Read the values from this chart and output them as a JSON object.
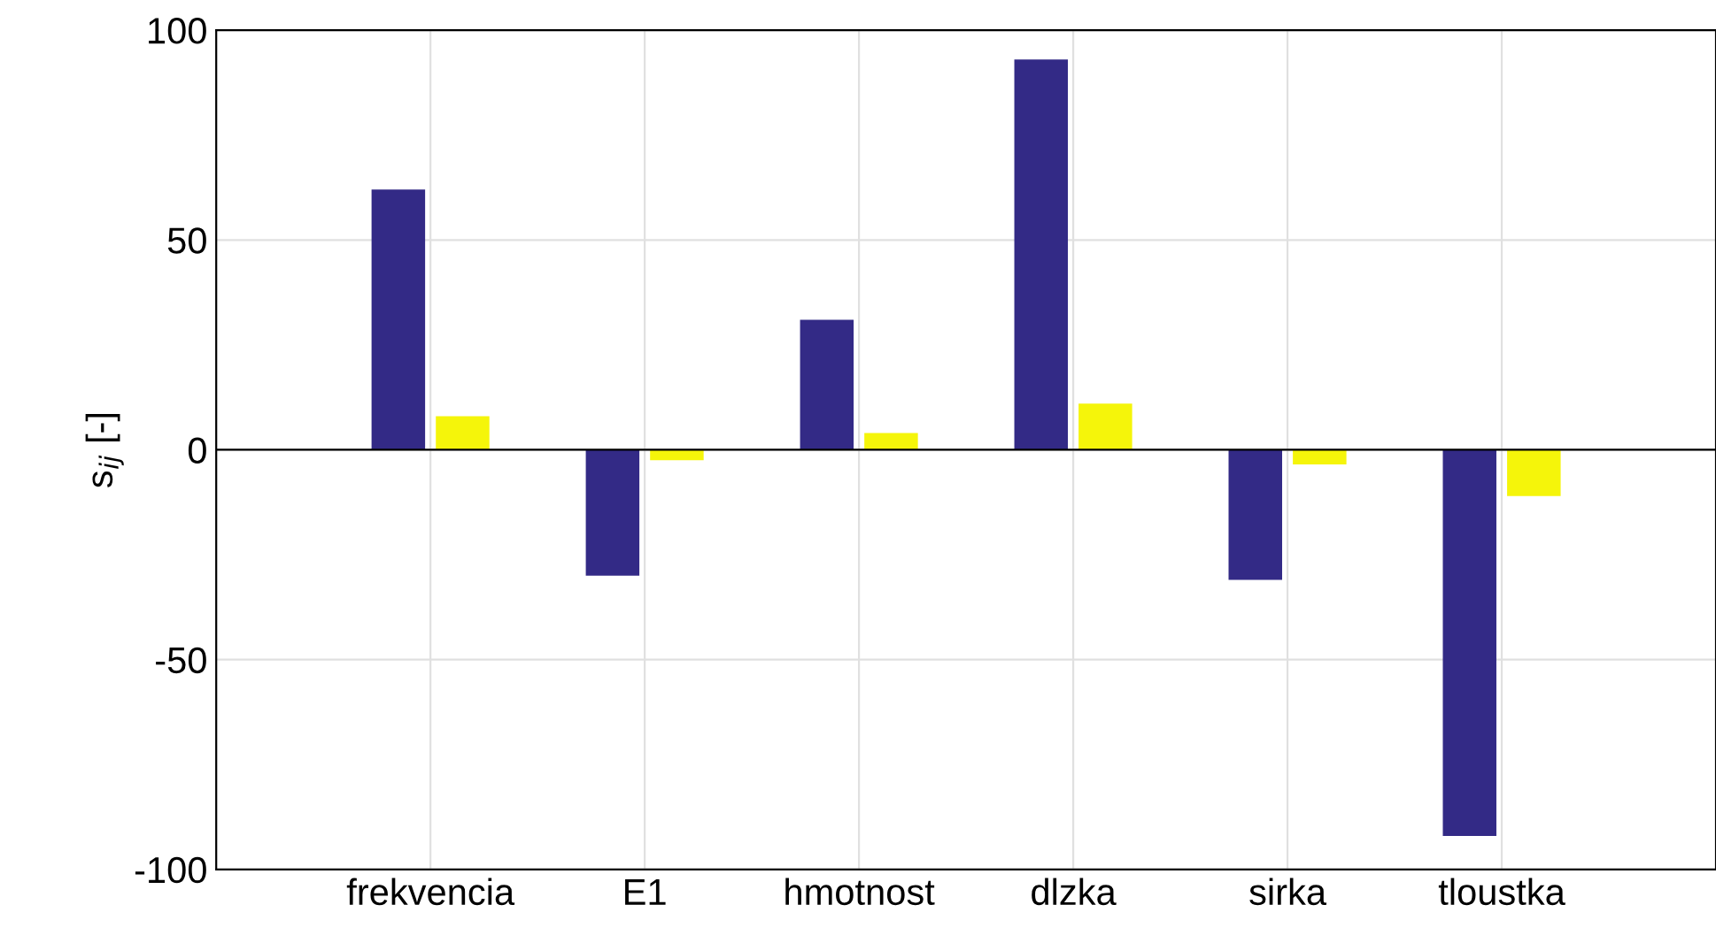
{
  "chart_data": {
    "type": "bar",
    "ylabel": "s$_{ij}$ [-]",
    "categories": [
      "frekvencia",
      "E1",
      "hmotnost",
      "dlzka",
      "sirka",
      "tloustka"
    ],
    "series": [
      {
        "color": "#332a86",
        "values": [
          62,
          -30,
          31,
          93,
          -31,
          -92
        ]
      },
      {
        "color": "#f5f50a",
        "values": [
          8,
          -2.5,
          4,
          11,
          -3.5,
          -11
        ]
      }
    ],
    "ylim": [
      -100,
      100
    ],
    "yticks": [
      -100,
      -50,
      0,
      50,
      100
    ],
    "grid": true,
    "ref_lines": [
      {
        "axis": "y",
        "value": 0,
        "color": "#000000"
      }
    ]
  }
}
